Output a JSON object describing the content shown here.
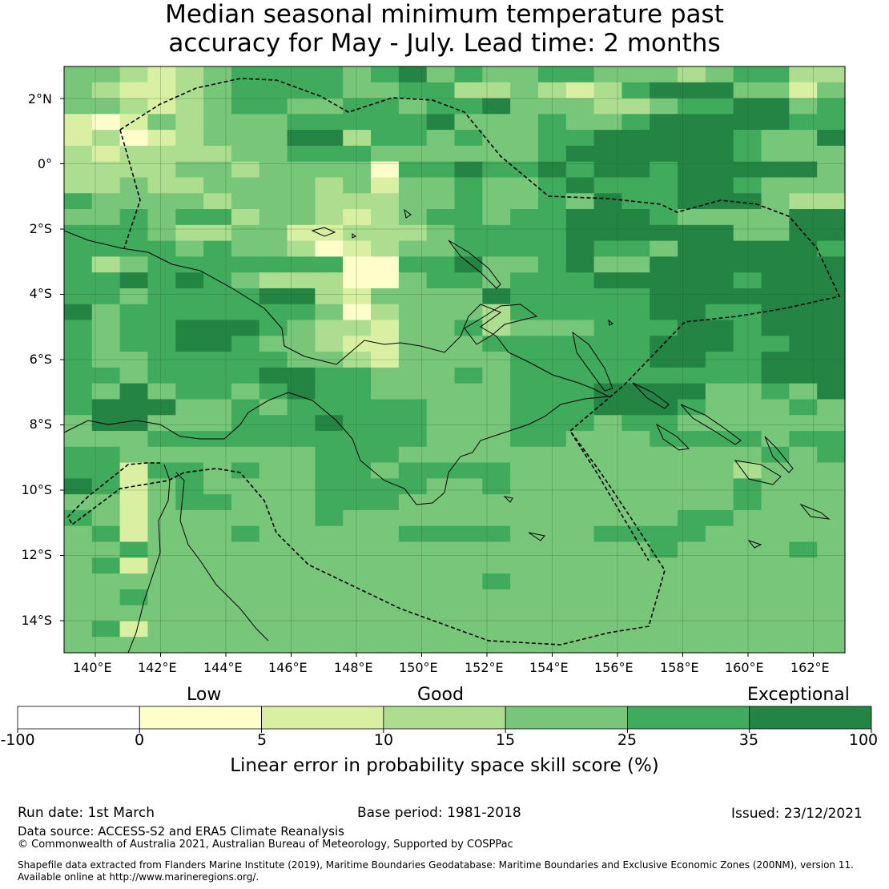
{
  "title": {
    "line1": "Median seasonal minimum temperature past",
    "line2": "accuracy for May - July. Lead time: 2 months"
  },
  "map": {
    "lon_labels": [
      "140°E",
      "142°E",
      "144°E",
      "146°E",
      "148°E",
      "150°E",
      "152°E",
      "154°E",
      "156°E",
      "158°E",
      "160°E",
      "162°E"
    ],
    "lat_labels": [
      "2°N",
      "0°",
      "2°S",
      "4°S",
      "6°S",
      "8°S",
      "10°S",
      "12°S",
      "14°S"
    ],
    "grid": [
      "4432345555456454455444345533",
      "4322345555445533432356664424",
      "4432345544554556444334556645",
      "2124344455555644454456666655",
      "2312344466355454455666665446",
      "3233334455544444456666665444",
      "3333443444415565565665666664",
      "3343344443424454456555665444",
      "5444434443334454454655666433",
      "4454553443234554556665444466",
      "5554334422333455556666664466",
      "5555454431234455556554666665",
      "5345555555115564456446666666",
      "5565654333114554555666665666",
      "5545555663244446555556666666",
      "6455555554134443555556655666",
      "5455666543324453444555665666",
      "5455665443224445555556665566",
      "5445555544324444555556655666",
      "5545555665544454555555555666",
      "5464554565544444555666644546",
      "5666445455555444555666544454",
      "4664445556555444555455444444",
      "4445555555555444554445555455",
      "5544444445554444444444444545",
      "5525545445545555444444443444",
      "6524544445555445444444445444",
      "4424554445554444444444445444",
      "5424444445444444444444554444",
      "4524445444445555444555544444",
      "4454444444444444444445444454",
      "4524444444444444444444444444",
      "4444444444444445444444444444",
      "4454444444444444444444444444",
      "4444444444444444444444444444",
      "4524444444444444444444444444",
      "4444444444444444444444444444"
    ]
  },
  "colorbar": {
    "categories": [
      {
        "label": "Low"
      },
      {
        "label": "Good"
      },
      {
        "label": "Exceptional"
      }
    ],
    "bins": [
      {
        "from": -100,
        "to": 0,
        "color": "#ffffff"
      },
      {
        "from": 0,
        "to": 5,
        "color": "#ffffcc"
      },
      {
        "from": 5,
        "to": 10,
        "color": "#d9f0a3"
      },
      {
        "from": 10,
        "to": 15,
        "color": "#addd8e"
      },
      {
        "from": 15,
        "to": 25,
        "color": "#78c679"
      },
      {
        "from": 25,
        "to": 35,
        "color": "#41ab5d"
      },
      {
        "from": 35,
        "to": 100,
        "color": "#238443"
      }
    ],
    "tick_labels": [
      "-100",
      "0",
      "5",
      "10",
      "15",
      "25",
      "35",
      "100"
    ],
    "label": "Linear error in probability space skill score (%)"
  },
  "footer": {
    "run_date": "Run date: 1st March",
    "base_period": "Base period: 1981-2018",
    "issued": "Issued: 23/12/2021",
    "data_source": "Data source: ACCESS-S2 and ERA5 Climate Reanalysis",
    "copyright": "© Commonwealth of Australia 2021, Australian Bureau of Meteorology, Supported by COSPPac",
    "shapefile_line1": "Shapefile data extracted from Flanders Marine Institute (2019), Maritime Boundaries Geodatabase: Maritime Boundaries and Exclusive Economic Zones (200NM), version 11.",
    "shapefile_line2": "Available online at http://www.marineregions.org/."
  }
}
